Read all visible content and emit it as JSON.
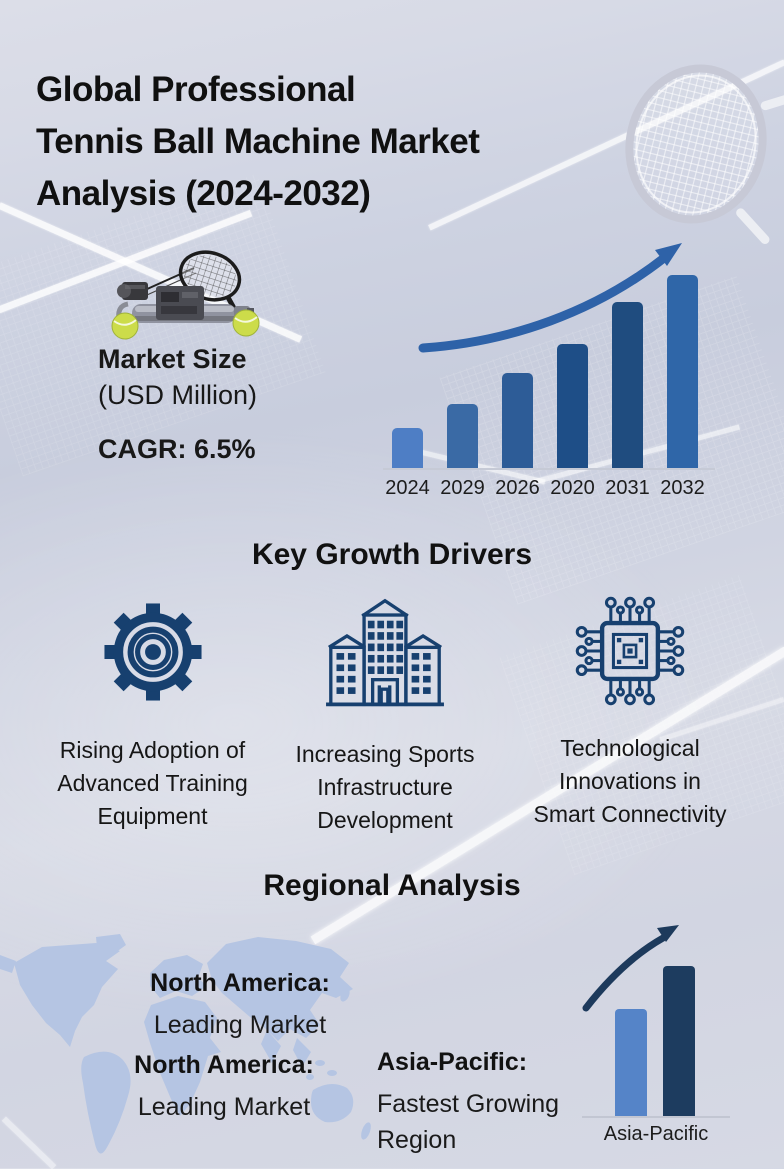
{
  "header": {
    "title": "Global Professional\nTennis Ball Machine Market\nAnalysis (2024-2032)"
  },
  "market": {
    "size_label": "Market Size",
    "size_unit": "(USD Million)",
    "cagr_label": "CAGR: 6.5%"
  },
  "chart_data": [
    {
      "id": "market-size-bar-chart",
      "type": "bar",
      "title": "Market Size (USD Million)",
      "categories": [
        "2024",
        "2029",
        "2026",
        "2020",
        "2031",
        "2032"
      ],
      "values": [
        40,
        64,
        95,
        124,
        166,
        193
      ],
      "values_note": "no numeric axis shown; values are relative bar heights in px",
      "bar_colors": [
        "#4e7ec5",
        "#3a6aa5",
        "#2d5c97",
        "#1e4e87",
        "#1f4c7f",
        "#2f66a8"
      ],
      "xlabel": "",
      "ylabel": "",
      "grid": false,
      "legend": "none",
      "annotations": [
        "curved upward growth arrow above bars"
      ]
    },
    {
      "id": "asia-pacific-growth-chart",
      "type": "bar",
      "categories": [
        "Asia-Pacific"
      ],
      "series": [
        {
          "name": "lower bar",
          "values": [
            108
          ],
          "color": "#5584c8"
        },
        {
          "name": "higher bar",
          "values": [
            151
          ],
          "color": "#1d3c5f"
        }
      ],
      "values_note": "no numeric axis shown; values are relative bar heights in px",
      "grid": false,
      "legend": "none",
      "annotations": [
        "curved upward growth arrow above bars"
      ]
    }
  ],
  "growth_drivers": {
    "heading": "Key Growth Drivers",
    "items": [
      {
        "icon": "gear-icon",
        "label": "Rising Adoption of\nAdvanced Training\nEquipment"
      },
      {
        "icon": "building-icon",
        "label": "Increasing Sports\nInfrastructure\nDevelopment"
      },
      {
        "icon": "chip-icon",
        "label": "Technological\nInnovations in\nSmart Connectivity"
      }
    ]
  },
  "regional": {
    "heading": "Regional Analysis",
    "blocks": [
      {
        "name": "North America:",
        "desc": "Leading Market"
      },
      {
        "name": "North America:",
        "desc": "Leading Market"
      },
      {
        "name": "Asia-Pacific:",
        "desc": "Fastest Growing\nRegion"
      }
    ]
  },
  "colors": {
    "accent_arrow_blue": "#2e62a8",
    "dark_navy": "#1d3a5c",
    "icon_navy": "#17406f",
    "map_blue": "#b5c5e3",
    "text": "#161616"
  }
}
